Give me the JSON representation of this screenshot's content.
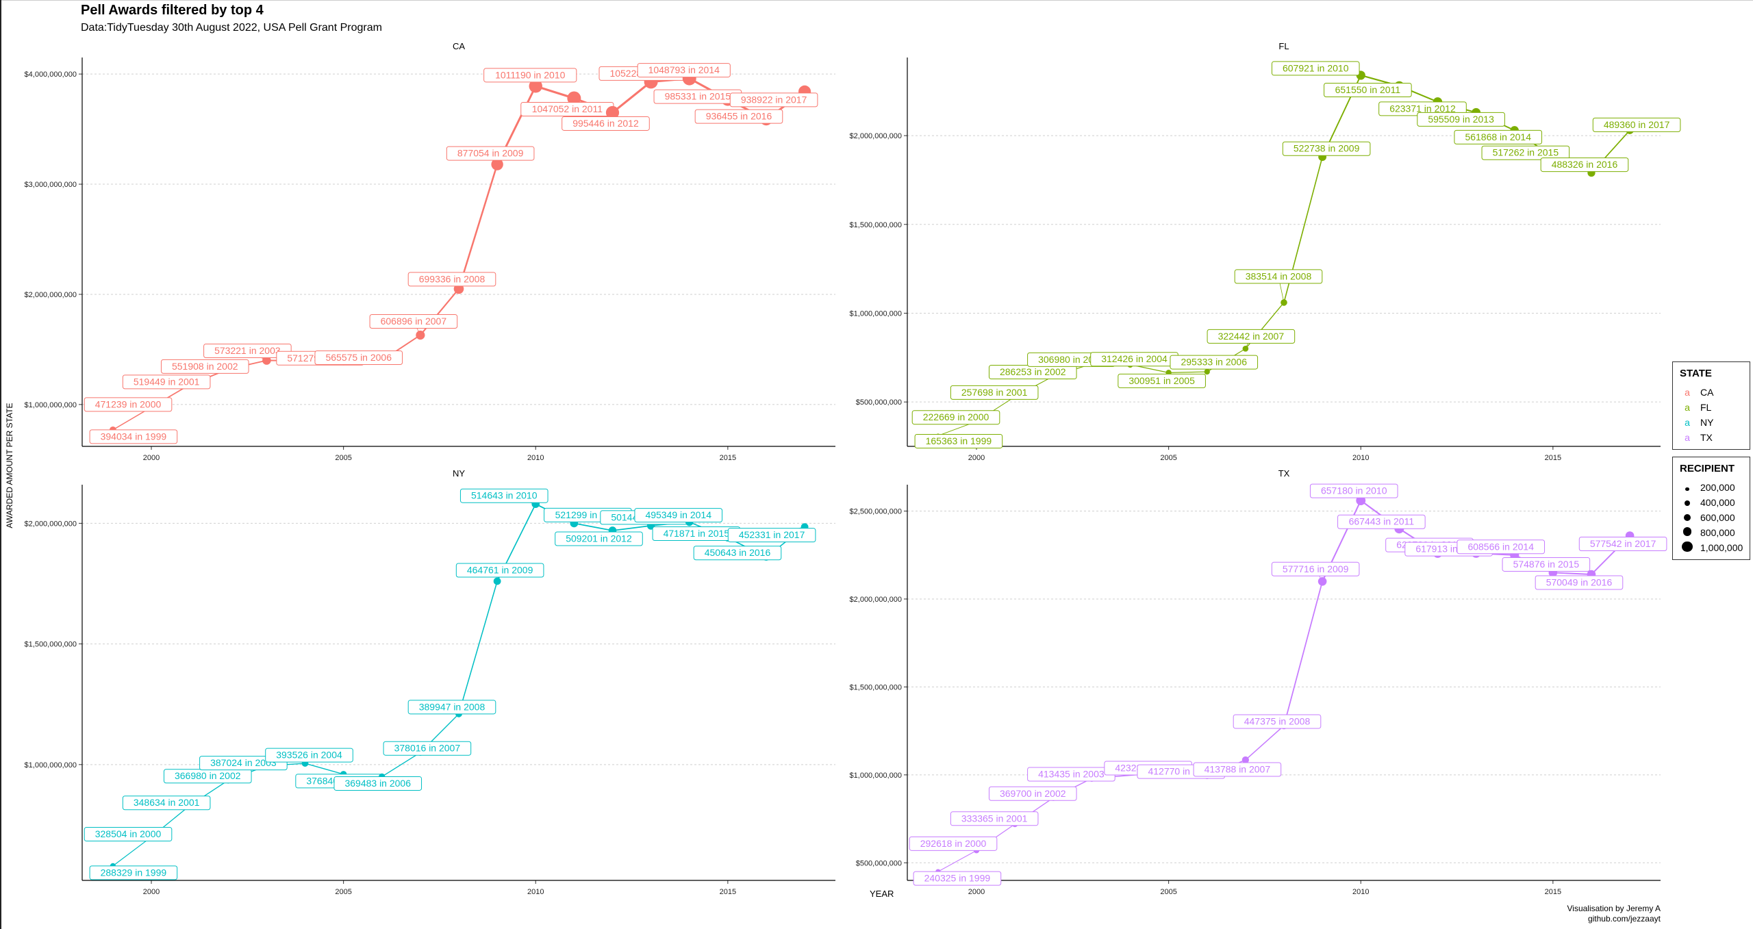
{
  "title": "Pell Awards filtered by top 4",
  "subtitle": "Data:TidyTuesday 30th August 2022, USA Pell Grant Program",
  "caption_line1": "Visualisation by Jeremy A",
  "caption_line2": "github.com/jezzaayt",
  "chart_data": {
    "type": "line",
    "xlabel": "YEAR",
    "ylabel": "AWARDED AMOUNT PER STATE",
    "facets": [
      {
        "state": "CA",
        "color": "#F8766D",
        "xlim": [
          1998.2,
          2017.8
        ],
        "ylim": [
          620000000,
          4150000000
        ],
        "y_ticks": [
          1000000000,
          2000000000,
          3000000000,
          4000000000
        ],
        "y_tick_labels": [
          "$1,000,000,000",
          "$2,000,000,000",
          "$3,000,000,000",
          "$4,000,000,000"
        ],
        "x_ticks": [
          2000,
          2005,
          2010,
          2015
        ],
        "x_tick_labels": [
          "2000",
          "2005",
          "2010",
          "2015"
        ],
        "points": [
          {
            "year": 1999,
            "amount": 770000000,
            "recipients": 394034
          },
          {
            "year": 2000,
            "amount": 975000000,
            "recipients": 471239
          },
          {
            "year": 2001,
            "amount": 1180000000,
            "recipients": 519449
          },
          {
            "year": 2002,
            "amount": 1320000000,
            "recipients": 551908
          },
          {
            "year": 2003,
            "amount": 1400000000,
            "recipients": 573221
          },
          {
            "year": 2005,
            "amount": 1395000000,
            "recipients": 571279
          },
          {
            "year": 2006,
            "amount": 1400000000,
            "recipients": 565575
          },
          {
            "year": 2007,
            "amount": 1630000000,
            "recipients": 606896
          },
          {
            "year": 2008,
            "amount": 2050000000,
            "recipients": 699336
          },
          {
            "year": 2009,
            "amount": 3180000000,
            "recipients": 877054
          },
          {
            "year": 2010,
            "amount": 3890000000,
            "recipients": 1011190
          },
          {
            "year": 2011,
            "amount": 3780000000,
            "recipients": 1047052
          },
          {
            "year": 2012,
            "amount": 3650000000,
            "recipients": 995446
          },
          {
            "year": 2013,
            "amount": 3930000000,
            "recipients": 1052285
          },
          {
            "year": 2014,
            "amount": 3960000000,
            "recipients": 1048793
          },
          {
            "year": 2015,
            "amount": 3770000000,
            "recipients": 985331
          },
          {
            "year": 2016,
            "amount": 3590000000,
            "recipients": 936455
          },
          {
            "year": 2017,
            "amount": 3840000000,
            "recipients": 938922
          }
        ]
      },
      {
        "state": "FL",
        "color": "#7CAE00",
        "xlim": [
          1998.2,
          2017.8
        ],
        "ylim": [
          250000000,
          2440000000
        ],
        "y_ticks": [
          500000000,
          1000000000,
          1500000000,
          2000000000
        ],
        "y_tick_labels": [
          "$500,000,000",
          "$1,000,000,000",
          "$1,500,000,000",
          "$2,000,000,000"
        ],
        "x_ticks": [
          2000,
          2005,
          2010,
          2015
        ],
        "x_tick_labels": [
          "2000",
          "2005",
          "2010",
          "2015"
        ],
        "points": [
          {
            "year": 1999,
            "amount": 310000000,
            "recipients": 165363
          },
          {
            "year": 2000,
            "amount": 390000000,
            "recipients": 222669
          },
          {
            "year": 2001,
            "amount": 530000000,
            "recipients": 257698
          },
          {
            "year": 2002,
            "amount": 645000000,
            "recipients": 286253
          },
          {
            "year": 2003,
            "amount": 715000000,
            "recipients": 306980
          },
          {
            "year": 2004,
            "amount": 710000000,
            "recipients": 312426
          },
          {
            "year": 2005,
            "amount": 665000000,
            "recipients": 300951
          },
          {
            "year": 2006,
            "amount": 670000000,
            "recipients": 295333
          },
          {
            "year": 2007,
            "amount": 800000000,
            "recipients": 322442
          },
          {
            "year": 2008,
            "amount": 1060000000,
            "recipients": 383514
          },
          {
            "year": 2009,
            "amount": 1880000000,
            "recipients": 522738
          },
          {
            "year": 2010,
            "amount": 2340000000,
            "recipients": 607921
          },
          {
            "year": 2011,
            "amount": 2280000000,
            "recipients": 651550
          },
          {
            "year": 2012,
            "amount": 2190000000,
            "recipients": 623371
          },
          {
            "year": 2013,
            "amount": 2130000000,
            "recipients": 595509
          },
          {
            "year": 2014,
            "amount": 2030000000,
            "recipients": 561868
          },
          {
            "year": 2015,
            "amount": 1880000000,
            "recipients": 517262
          },
          {
            "year": 2016,
            "amount": 1790000000,
            "recipients": 488326
          },
          {
            "year": 2017,
            "amount": 2030000000,
            "recipients": 489360
          }
        ]
      },
      {
        "state": "NY",
        "color": "#00BFC4",
        "xlim": [
          1998.2,
          2017.8
        ],
        "ylim": [
          520000000,
          2160000000
        ],
        "y_ticks": [
          1000000000,
          1500000000,
          2000000000
        ],
        "y_tick_labels": [
          "$1,000,000,000",
          "$1,500,000,000",
          "$2,000,000,000"
        ],
        "x_ticks": [
          2000,
          2005,
          2010,
          2015
        ],
        "x_tick_labels": [
          "2000",
          "2005",
          "2010",
          "2015"
        ],
        "points": [
          {
            "year": 1999,
            "amount": 580000000,
            "recipients": 288329
          },
          {
            "year": 2000,
            "amount": 700000000,
            "recipients": 328504
          },
          {
            "year": 2001,
            "amount": 830000000,
            "recipients": 348634
          },
          {
            "year": 2002,
            "amount": 935000000,
            "recipients": 366980
          },
          {
            "year": 2003,
            "amount": 995000000,
            "recipients": 387024
          },
          {
            "year": 2004,
            "amount": 1005000000,
            "recipients": 393526
          },
          {
            "year": 2005,
            "amount": 960000000,
            "recipients": 376840
          },
          {
            "year": 2006,
            "amount": 950000000,
            "recipients": 369483
          },
          {
            "year": 2007,
            "amount": 1050000000,
            "recipients": 378016
          },
          {
            "year": 2008,
            "amount": 1210000000,
            "recipients": 389947
          },
          {
            "year": 2009,
            "amount": 1760000000,
            "recipients": 464761
          },
          {
            "year": 2010,
            "amount": 2080000000,
            "recipients": 514643
          },
          {
            "year": 2011,
            "amount": 2000000000,
            "recipients": 521299
          },
          {
            "year": 2012,
            "amount": 1970000000,
            "recipients": 509201
          },
          {
            "year": 2013,
            "amount": 1990000000,
            "recipients": 501440
          },
          {
            "year": 2014,
            "amount": 2005000000,
            "recipients": 495349
          },
          {
            "year": 2015,
            "amount": 1940000000,
            "recipients": 471871
          },
          {
            "year": 2016,
            "amount": 1860000000,
            "recipients": 450643
          },
          {
            "year": 2017,
            "amount": 1985000000,
            "recipients": 452331
          }
        ]
      },
      {
        "state": "TX",
        "color": "#C77CFF",
        "xlim": [
          1998.2,
          2017.8
        ],
        "ylim": [
          400000000,
          2650000000
        ],
        "y_ticks": [
          500000000,
          1000000000,
          1500000000,
          2000000000,
          2500000000
        ],
        "y_tick_labels": [
          "$500,000,000",
          "$1,000,000,000",
          "$1,500,000,000",
          "$2,000,000,000",
          "$2,500,000,000"
        ],
        "x_ticks": [
          2000,
          2005,
          2010,
          2015
        ],
        "x_tick_labels": [
          "2000",
          "2005",
          "2010",
          "2015"
        ],
        "points": [
          {
            "year": 1999,
            "amount": 450000000,
            "recipients": 240325
          },
          {
            "year": 2000,
            "amount": 570000000,
            "recipients": 292618
          },
          {
            "year": 2001,
            "amount": 720000000,
            "recipients": 333365
          },
          {
            "year": 2002,
            "amount": 870000000,
            "recipients": 369700
          },
          {
            "year": 2003,
            "amount": 980000000,
            "recipients": 413435
          },
          {
            "year": 2005,
            "amount": 1015000000,
            "recipients": 423287
          },
          {
            "year": 2006,
            "amount": 995000000,
            "recipients": 412770
          },
          {
            "year": 2007,
            "amount": 1085000000,
            "recipients": 413788
          },
          {
            "year": 2008,
            "amount": 1280000000,
            "recipients": 447375
          },
          {
            "year": 2009,
            "amount": 2100000000,
            "recipients": 577716
          },
          {
            "year": 2010,
            "amount": 2560000000,
            "recipients": 657180
          },
          {
            "year": 2011,
            "amount": 2400000000,
            "recipients": 667443
          },
          {
            "year": 2012,
            "amount": 2260000000,
            "recipients": 629739
          },
          {
            "year": 2013,
            "amount": 2260000000,
            "recipients": 617913
          },
          {
            "year": 2014,
            "amount": 2250000000,
            "recipients": 608566
          },
          {
            "year": 2015,
            "amount": 2150000000,
            "recipients": 574876
          },
          {
            "year": 2016,
            "amount": 2140000000,
            "recipients": 570049
          },
          {
            "year": 2017,
            "amount": 2360000000,
            "recipients": 577542
          }
        ]
      }
    ],
    "label_template": "{recipients}  in  {year}",
    "legend": {
      "state_title": "STATE",
      "states": [
        {
          "label": "CA",
          "color": "#F8766D"
        },
        {
          "label": "FL",
          "color": "#7CAE00"
        },
        {
          "label": "NY",
          "color": "#00BFC4"
        },
        {
          "label": "TX",
          "color": "#C77CFF"
        }
      ],
      "size_title": "RECIPIENT",
      "sizes": [
        {
          "label": "200,000",
          "value": 200000
        },
        {
          "label": "400,000",
          "value": 400000
        },
        {
          "label": "600,000",
          "value": 600000
        },
        {
          "label": "800,000",
          "value": 800000
        },
        {
          "label": "1,000,000",
          "value": 1000000
        }
      ],
      "position": "right"
    },
    "grid": "horizontal-major-dotted"
  }
}
